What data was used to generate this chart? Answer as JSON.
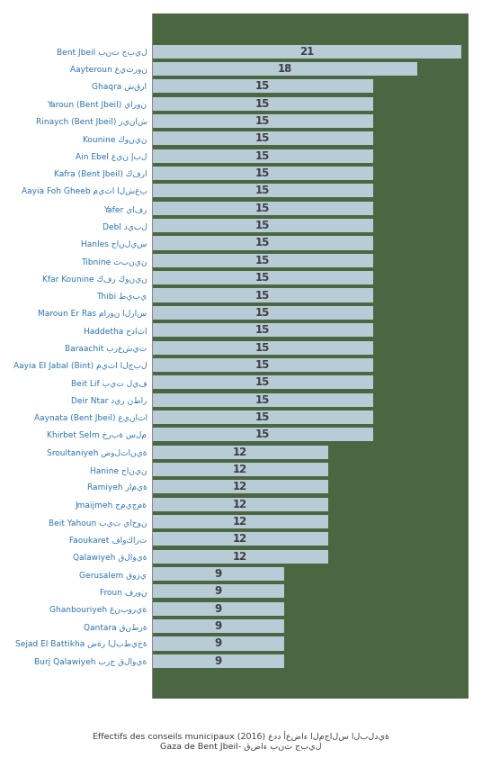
{
  "categories": [
    "Bent Jbeil بنت جبيل",
    "Aayteroun عيترون",
    "Ghaqra شقرا",
    "Yaroun (Bent Jbeil) يارون",
    "Rinaych (Bent Jbeil) ريناش",
    "Kounine كونين",
    "Ain Ebel عين إبل",
    "Kafra (Bent Jbeil) كفرا",
    "Aayia Foh Gheeb ميتا الشعب",
    "Yafer يافر",
    "Debl ديبل",
    "Hanles حانليس",
    "Tibnine تبنين",
    "Kfar Kounine كفر كونين",
    "Thibi طيبي",
    "Maroun Er Ras مارون الراس",
    "Haddetha حداثا",
    "Baraachit برعشيت",
    "Aayia El Jabal (Bint) ميتا الجبل",
    "Beit Lif بيت ليف",
    "Deir Ntar دير نطار",
    "Aaynata (Bent Jbeil) عيناتا",
    "Khirbet Selm خربة سلم",
    "Sroultaniyeh صولتانية",
    "Hanine حانين",
    "Ramiyeh رامية",
    "Jmaijmeh جميجمة",
    "Beit Yahoun بيت ياحون",
    "Faoukaret فاوكارت",
    "Qalawiyeh قلاوية",
    "Gerusalem قوزي",
    "Froun فرون",
    "Ghanbouriyeh غنبورية",
    "Qantara قنطرة",
    "Sejad El Battikha ضهر البطيخة",
    "Burj Qalawiyeh برج قلاوية"
  ],
  "values": [
    21,
    18,
    15,
    15,
    15,
    15,
    15,
    15,
    15,
    15,
    15,
    15,
    15,
    15,
    15,
    15,
    15,
    15,
    15,
    15,
    15,
    15,
    15,
    12,
    12,
    12,
    12,
    12,
    12,
    12,
    9,
    9,
    9,
    9,
    9,
    9
  ],
  "bar_color": "#b8ccd8",
  "axes_bg_color": "#4a6741",
  "label_color": "#2e75b6",
  "value_color": "#404040",
  "value_fontsize": 8.5,
  "label_fontsize": 6.5,
  "title_text": "Effectifs des conseils municipaux (2016) عدد أعضاء المجالس البلدية",
  "subtitle_text": "Gaza de Bent Jbeil- قضاء بنت جبيل",
  "background_color": "#ffffff",
  "figsize": [
    5.36,
    8.42
  ],
  "dpi": 100,
  "xlim_max": 21.5,
  "bar_height": 0.78,
  "separator_color": "#888888"
}
